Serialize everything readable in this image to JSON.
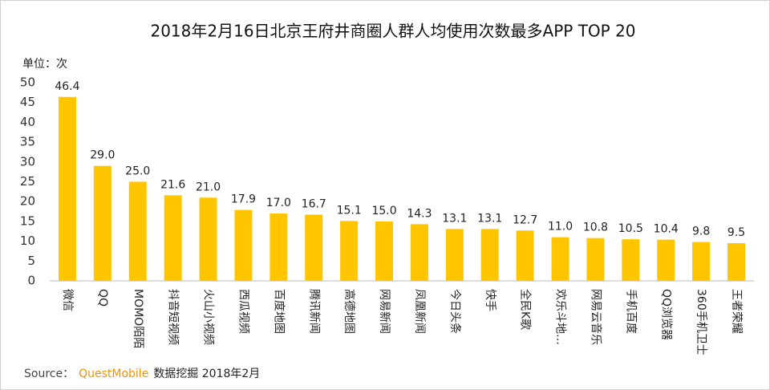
{
  "chart_data": {
    "type": "bar",
    "title": "2018年2月16日北京王府井商圈人群人均使用次数最多APP TOP 20",
    "y_unit_label": "单位：次",
    "categories": [
      "微信",
      "QQ",
      "MOMO陌陌",
      "抖音短视频",
      "火山小视频",
      "西瓜视频",
      "百度地图",
      "腾讯新闻",
      "高德地图",
      "网易新闻",
      "凤凰新闻",
      "今日头条",
      "快手",
      "全民K歌",
      "欢乐斗地…",
      "网易云音乐",
      "手机百度",
      "QQ浏览器",
      "360手机卫士",
      "王者荣耀"
    ],
    "values": [
      46.4,
      29.0,
      25.0,
      21.6,
      21.0,
      17.9,
      17.0,
      16.7,
      15.1,
      15.0,
      14.3,
      13.1,
      13.1,
      12.7,
      11.0,
      10.8,
      10.5,
      10.4,
      9.8,
      9.5
    ],
    "value_labels": [
      "46.4",
      "29.0",
      "25.0",
      "21.6",
      "21.0",
      "17.9",
      "17.0",
      "16.7",
      "15.1",
      "15.0",
      "14.3",
      "13.1",
      "13.1",
      "12.7",
      "11.0",
      "10.8",
      "10.5",
      "10.4",
      "9.8",
      "9.5"
    ],
    "color": "#ffc600",
    "ylim": [
      0,
      50
    ],
    "yticks": [
      0,
      5,
      10,
      15,
      20,
      25,
      30,
      35,
      40,
      45,
      50
    ],
    "grid": false,
    "source": {
      "prefix": "Source：",
      "brand": "QuestMobile",
      "suffix": "数据挖掘 2018年2月"
    }
  }
}
